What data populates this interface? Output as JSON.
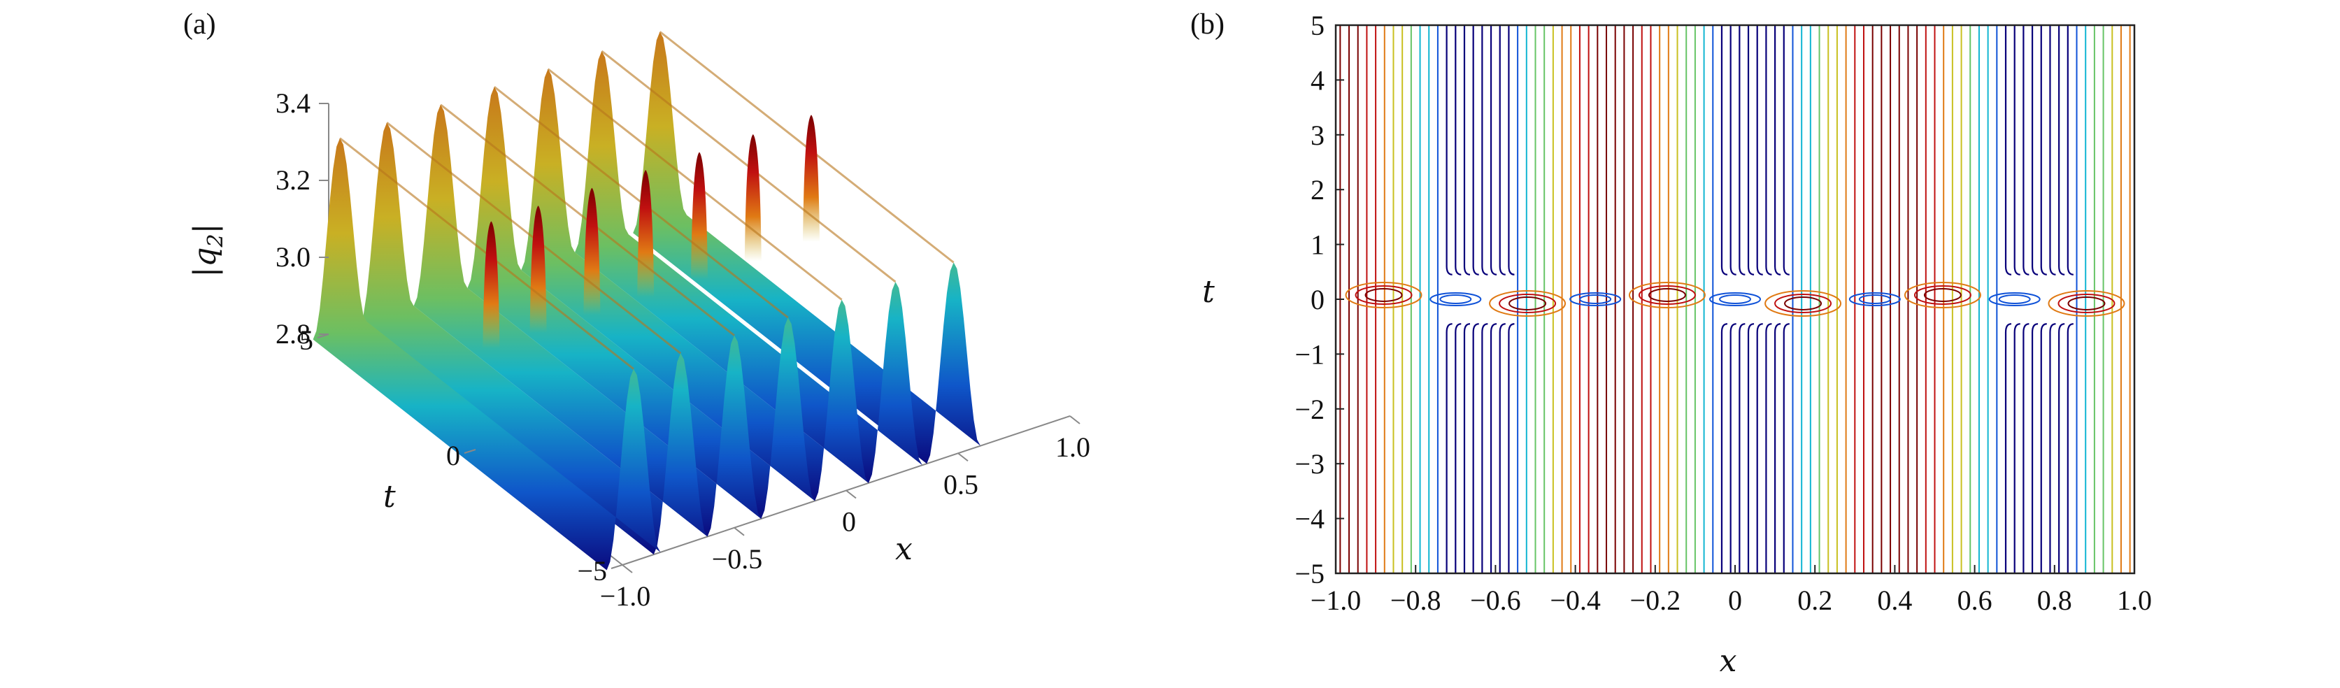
{
  "chart_data": [
    {
      "panel_label": "(a)",
      "type": "surface",
      "zlabel": "|q2|",
      "zlabel_main": "|q",
      "zlabel_sub": "2",
      "zlabel_close": "|",
      "xlabel": "x",
      "ylabel": "t",
      "x_range": [
        -1.0,
        1.0
      ],
      "t_range": [
        -5,
        5
      ],
      "z_range": [
        2.8,
        3.4
      ],
      "x_ticks": [
        "−1.0",
        "−0.5",
        "0",
        "0.5",
        "1.0"
      ],
      "x_tick_values": [
        -1.0,
        -0.5,
        0,
        0.5,
        1.0
      ],
      "t_ticks": [
        "−5",
        "0",
        "5"
      ],
      "t_tick_values": [
        -5,
        0,
        5
      ],
      "z_ticks": [
        "2.8",
        "3.0",
        "3.2",
        "3.4"
      ],
      "z_tick_values": [
        2.8,
        3.0,
        3.2,
        3.4
      ],
      "colormap": [
        "#08007a",
        "#0f52d8",
        "#11b5d2",
        "#66c466",
        "#c9c020",
        "#e07a14",
        "#c01010",
        "#7a0000"
      ]
    },
    {
      "panel_label": "(b)",
      "type": "contour",
      "xlabel": "x",
      "ylabel": "t",
      "x_range": [
        -1.0,
        1.0
      ],
      "t_range": [
        -5,
        5
      ],
      "x_ticks": [
        "−1.0",
        "−0.8",
        "−0.6",
        "−0.4",
        "−0.2",
        "0",
        "0.2",
        "0.4",
        "0.6",
        "0.8",
        "1.0"
      ],
      "x_tick_values": [
        -1.0,
        -0.8,
        -0.6,
        -0.4,
        -0.2,
        0,
        0.2,
        0.4,
        0.6,
        0.8,
        1.0
      ],
      "t_ticks": [
        "5",
        "4",
        "3",
        "2",
        "1",
        "0",
        "−1",
        "−2",
        "−3",
        "−4",
        "−5"
      ],
      "t_tick_values": [
        5,
        4,
        3,
        2,
        1,
        0,
        -1,
        -2,
        -3,
        -4,
        -5
      ],
      "colormap": [
        "#08007a",
        "#0f52d8",
        "#11b5d2",
        "#66c466",
        "#c9c020",
        "#e07a14",
        "#c01010",
        "#7a0000"
      ]
    }
  ]
}
